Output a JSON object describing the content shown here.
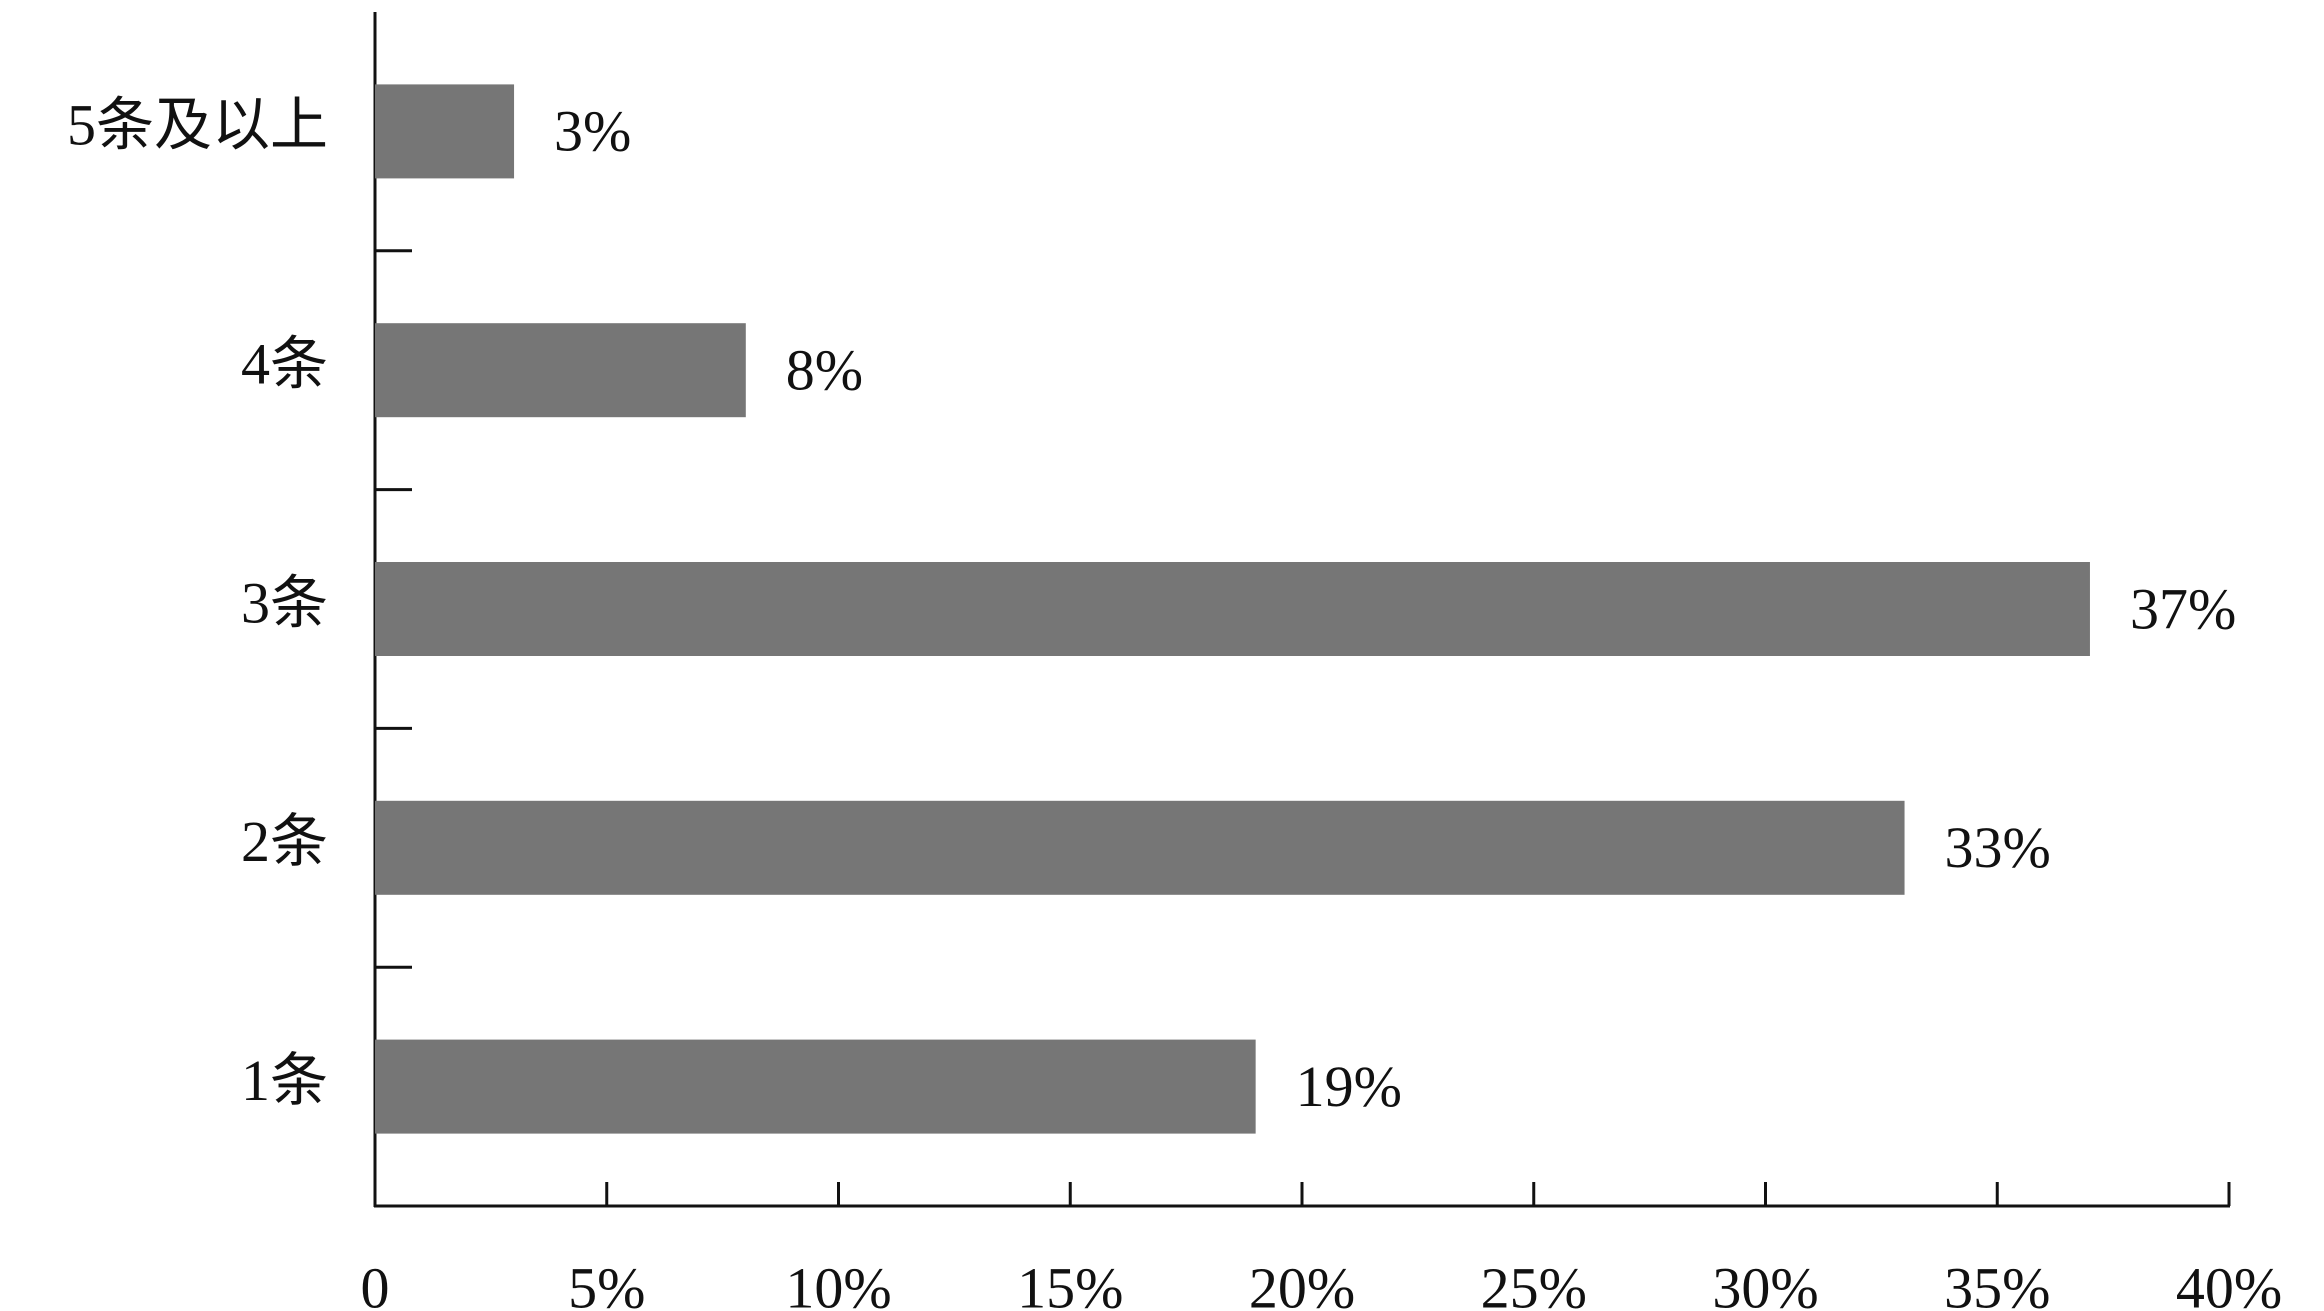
{
  "chart_data": {
    "type": "hbar",
    "categories": [
      "5条及以上",
      "4条",
      "3条",
      "2条",
      "1条"
    ],
    "values": [
      3,
      8,
      37,
      33,
      19
    ],
    "value_labels": [
      "3%",
      "8%",
      "37%",
      "33%",
      "19%"
    ],
    "color": "#767676",
    "xlim": [
      0,
      40
    ],
    "xticks": [
      0,
      {
        "value": 5,
        "label": "5%"
      },
      {
        "value": 10,
        "label": "10%"
      },
      {
        "value": 15,
        "label": "15%"
      },
      {
        "value": 20,
        "label": "20%"
      },
      {
        "value": 25,
        "label": "25%"
      },
      {
        "value": 30,
        "label": "30%"
      },
      {
        "value": 35,
        "label": "35%"
      },
      {
        "value": 40,
        "label": "40%"
      }
    ],
    "grid": false
  }
}
